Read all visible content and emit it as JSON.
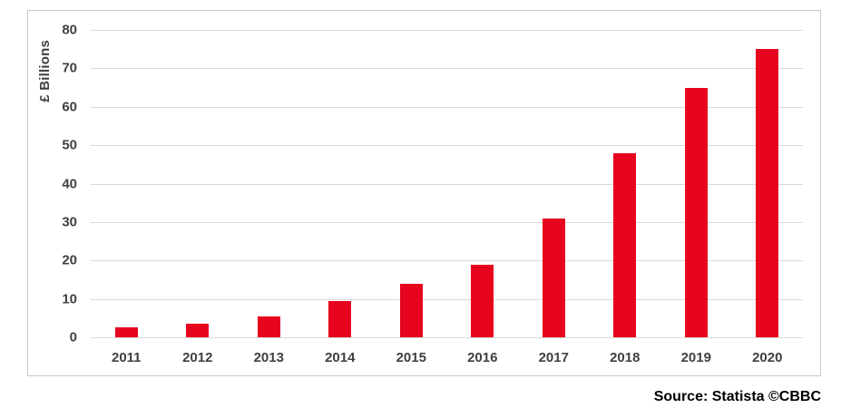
{
  "chart_data": {
    "type": "bar",
    "categories": [
      "2011",
      "2012",
      "2013",
      "2014",
      "2015",
      "2016",
      "2017",
      "2018",
      "2019",
      "2020"
    ],
    "values": [
      2.5,
      3.5,
      5.5,
      9.5,
      14,
      19,
      31,
      48,
      65,
      75
    ],
    "title": "",
    "xlabel": "",
    "ylabel": "£ Billions",
    "ylim": [
      0,
      80
    ],
    "yticks": [
      0,
      10,
      20,
      30,
      40,
      50,
      60,
      70,
      80
    ],
    "grid": true,
    "legend": "none",
    "bar_color": "#e6041f",
    "gridline_color": "#d9d9d9",
    "axis_text_color": "#404040"
  },
  "footer": {
    "source": "Source: Statista ©CBBC"
  }
}
